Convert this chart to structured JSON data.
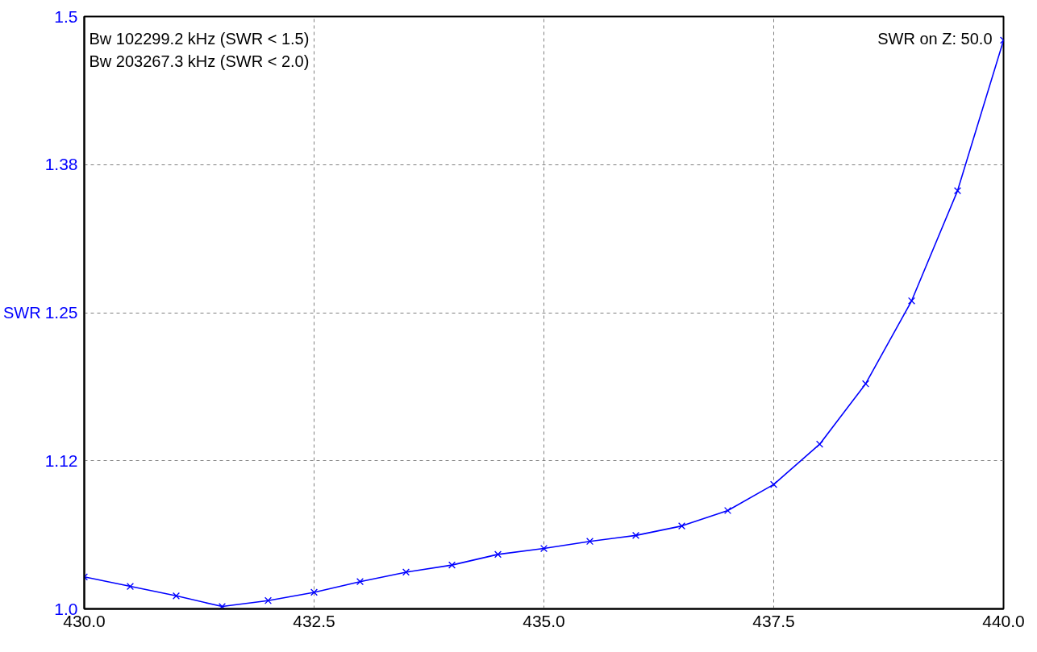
{
  "chart_data": {
    "type": "line",
    "ylabel": "SWR",
    "x": [
      430,
      430.5,
      431,
      431.5,
      432,
      432.5,
      433,
      433.5,
      434,
      434.5,
      435,
      435.5,
      436,
      436.5,
      437,
      437.5,
      438,
      438.5,
      439,
      439.5,
      440
    ],
    "series": [
      {
        "color": "#0000ff",
        "values": [
          1.027,
          1.019,
          1.011,
          1.002,
          1.007,
          1.014,
          1.023,
          1.031,
          1.037,
          1.046,
          1.051,
          1.057,
          1.062,
          1.07,
          1.083,
          1.105,
          1.139,
          1.19,
          1.26,
          1.353,
          1.48
        ]
      }
    ],
    "xlim": [
      430,
      440
    ],
    "ylim": [
      1.0,
      1.5
    ],
    "xticks": [
      {
        "value": 430,
        "label": "430.0"
      },
      {
        "value": 432.5,
        "label": "432.5"
      },
      {
        "value": 435,
        "label": "435.0"
      },
      {
        "value": 437.5,
        "label": "437.5"
      },
      {
        "value": 440,
        "label": "440.0"
      }
    ],
    "yticks": [
      {
        "value": 1.0,
        "label": "1.0"
      },
      {
        "value": 1.125,
        "label": "1.12"
      },
      1.25,
      {
        "value": 1.375,
        "label": "1.38"
      },
      1.5
    ],
    "grid": true,
    "marker": "cross",
    "line_style": "solid",
    "annotations": [
      "Bw 102299.2 kHz (SWR < 1.5)",
      "Bw 203267.3 kHz (SWR < 2.0)",
      "SWR on Z: 50.0"
    ]
  }
}
